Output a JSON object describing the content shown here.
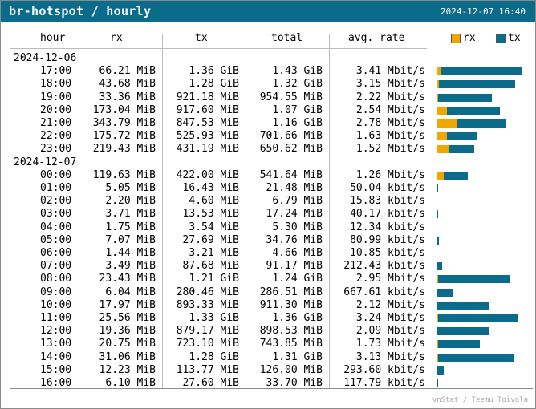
{
  "window": {
    "title": "br-hotspot / hourly",
    "timestamp": "2024-12-07 16:40",
    "footer": "vnStat / Teemu Toivola"
  },
  "colors": {
    "header_bg": "#0b6b8a",
    "rx": "#f0a800",
    "tx": "#0b6b8a"
  },
  "headers": {
    "hour": "hour",
    "rx": "rx",
    "tx": "tx",
    "total": "total",
    "rate": "avg. rate"
  },
  "legend": {
    "rx": "rx",
    "tx": "tx"
  },
  "chart_data": {
    "type": "table",
    "columns": [
      "hour",
      "rx",
      "tx",
      "total",
      "avg. rate"
    ],
    "bar_series": [
      "rx",
      "tx"
    ],
    "groups": [
      {
        "date": "2024-12-06",
        "rows": [
          {
            "hour": "17:00",
            "rx": "66.21 MiB",
            "tx": "1.36 GiB",
            "total": "1.43 GiB",
            "rate": "3.41 Mbit/s",
            "rx_mib": 66.21,
            "tx_mib": 1392.64
          },
          {
            "hour": "18:00",
            "rx": "43.68 MiB",
            "tx": "1.28 GiB",
            "total": "1.32 GiB",
            "rate": "3.15 Mbit/s",
            "rx_mib": 43.68,
            "tx_mib": 1310.72
          },
          {
            "hour": "19:00",
            "rx": "33.36 MiB",
            "tx": "921.18 MiB",
            "total": "954.55 MiB",
            "rate": "2.22 Mbit/s",
            "rx_mib": 33.36,
            "tx_mib": 921.18
          },
          {
            "hour": "20:00",
            "rx": "173.04 MiB",
            "tx": "917.60 MiB",
            "total": "1.07 GiB",
            "rate": "2.54 Mbit/s",
            "rx_mib": 173.04,
            "tx_mib": 917.6
          },
          {
            "hour": "21:00",
            "rx": "343.79 MiB",
            "tx": "847.53 MiB",
            "total": "1.16 GiB",
            "rate": "2.78 Mbit/s",
            "rx_mib": 343.79,
            "tx_mib": 847.53
          },
          {
            "hour": "22:00",
            "rx": "175.72 MiB",
            "tx": "525.93 MiB",
            "total": "701.66 MiB",
            "rate": "1.63 Mbit/s",
            "rx_mib": 175.72,
            "tx_mib": 525.93
          },
          {
            "hour": "23:00",
            "rx": "219.43 MiB",
            "tx": "431.19 MiB",
            "total": "650.62 MiB",
            "rate": "1.52 Mbit/s",
            "rx_mib": 219.43,
            "tx_mib": 431.19
          }
        ]
      },
      {
        "date": "2024-12-07",
        "rows": [
          {
            "hour": "00:00",
            "rx": "119.63 MiB",
            "tx": "422.00 MiB",
            "total": "541.64 MiB",
            "rate": "1.26 Mbit/s",
            "rx_mib": 119.63,
            "tx_mib": 422.0
          },
          {
            "hour": "01:00",
            "rx": "5.05 MiB",
            "tx": "16.43 MiB",
            "total": "21.48 MiB",
            "rate": "50.04 kbit/s",
            "rx_mib": 5.05,
            "tx_mib": 16.43
          },
          {
            "hour": "02:00",
            "rx": "2.20 MiB",
            "tx": "4.60 MiB",
            "total": "6.79 MiB",
            "rate": "15.83 kbit/s",
            "rx_mib": 2.2,
            "tx_mib": 4.6
          },
          {
            "hour": "03:00",
            "rx": "3.71 MiB",
            "tx": "13.53 MiB",
            "total": "17.24 MiB",
            "rate": "40.17 kbit/s",
            "rx_mib": 3.71,
            "tx_mib": 13.53
          },
          {
            "hour": "04:00",
            "rx": "1.75 MiB",
            "tx": "3.54 MiB",
            "total": "5.30 MiB",
            "rate": "12.34 kbit/s",
            "rx_mib": 1.75,
            "tx_mib": 3.54
          },
          {
            "hour": "05:00",
            "rx": "7.07 MiB",
            "tx": "27.69 MiB",
            "total": "34.76 MiB",
            "rate": "80.99 kbit/s",
            "rx_mib": 7.07,
            "tx_mib": 27.69
          },
          {
            "hour": "06:00",
            "rx": "1.44 MiB",
            "tx": "3.21 MiB",
            "total": "4.66 MiB",
            "rate": "10.85 kbit/s",
            "rx_mib": 1.44,
            "tx_mib": 3.21
          },
          {
            "hour": "07:00",
            "rx": "3.49 MiB",
            "tx": "87.68 MiB",
            "total": "91.17 MiB",
            "rate": "212.43 kbit/s",
            "rx_mib": 3.49,
            "tx_mib": 87.68
          },
          {
            "hour": "08:00",
            "rx": "23.43 MiB",
            "tx": "1.21 GiB",
            "total": "1.24 GiB",
            "rate": "2.95 Mbit/s",
            "rx_mib": 23.43,
            "tx_mib": 1239.04
          },
          {
            "hour": "09:00",
            "rx": "6.04 MiB",
            "tx": "280.46 MiB",
            "total": "286.51 MiB",
            "rate": "667.61 kbit/s",
            "rx_mib": 6.04,
            "tx_mib": 280.46
          },
          {
            "hour": "10:00",
            "rx": "17.97 MiB",
            "tx": "893.33 MiB",
            "total": "911.30 MiB",
            "rate": "2.12 Mbit/s",
            "rx_mib": 17.97,
            "tx_mib": 893.33
          },
          {
            "hour": "11:00",
            "rx": "25.56 MiB",
            "tx": "1.33 GiB",
            "total": "1.36 GiB",
            "rate": "3.24 Mbit/s",
            "rx_mib": 25.56,
            "tx_mib": 1361.92
          },
          {
            "hour": "12:00",
            "rx": "19.36 MiB",
            "tx": "879.17 MiB",
            "total": "898.53 MiB",
            "rate": "2.09 Mbit/s",
            "rx_mib": 19.36,
            "tx_mib": 879.17
          },
          {
            "hour": "13:00",
            "rx": "20.75 MiB",
            "tx": "723.10 MiB",
            "total": "743.85 MiB",
            "rate": "1.73 Mbit/s",
            "rx_mib": 20.75,
            "tx_mib": 723.1
          },
          {
            "hour": "14:00",
            "rx": "31.06 MiB",
            "tx": "1.28 GiB",
            "total": "1.31 GiB",
            "rate": "3.13 Mbit/s",
            "rx_mib": 31.06,
            "tx_mib": 1310.72
          },
          {
            "hour": "15:00",
            "rx": "12.23 MiB",
            "tx": "113.77 MiB",
            "total": "126.00 MiB",
            "rate": "293.60 kbit/s",
            "rx_mib": 12.23,
            "tx_mib": 113.77
          },
          {
            "hour": "16:00",
            "rx": "6.10 MiB",
            "tx": "27.60 MiB",
            "total": "33.70 MiB",
            "rate": "117.79 kbit/s",
            "rx_mib": 6.1,
            "tx_mib": 27.6
          }
        ]
      }
    ]
  }
}
